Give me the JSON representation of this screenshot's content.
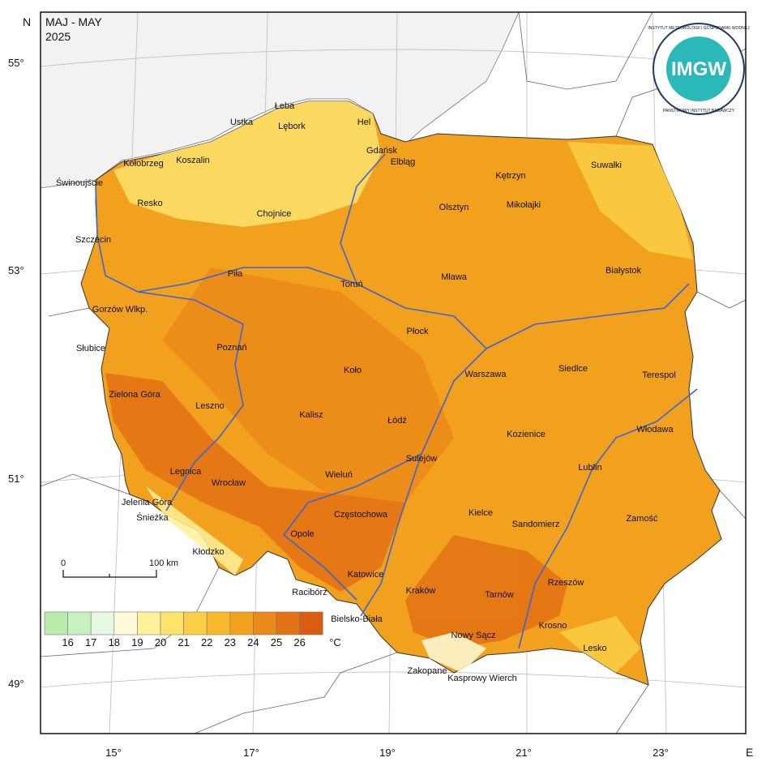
{
  "header": {
    "title": "MAJ - MAY",
    "year": "2025"
  },
  "north": "N",
  "east": "E",
  "logo": {
    "short": "IMGW",
    "ring_top": "INSTYTUT METEOROLOGII I GOSPODARKI WODNEJ",
    "ring_bottom": "PAŃSTWOWY INSTYTUT BADAWCZY"
  },
  "latitudes": [
    "55°",
    "53°",
    "51°",
    "49°"
  ],
  "longitudes": [
    "15°",
    "17°",
    "19°",
    "21°",
    "23°"
  ],
  "scale": {
    "start": "0",
    "end": "100 km"
  },
  "legend": {
    "labels": [
      "16",
      "17",
      "18",
      "19",
      "20",
      "21",
      "22",
      "23",
      "24",
      "25",
      "26"
    ],
    "unit": "°C",
    "colors": [
      "#b9ecaa",
      "#c9f0c0",
      "#e6f7e2",
      "#fffbd8",
      "#fff29a",
      "#fde36c",
      "#fbcf45",
      "#f8b82c",
      "#f2a11f",
      "#eb8a18",
      "#e37214",
      "#d95c10"
    ]
  },
  "cities": [
    "Łeba",
    "Hel",
    "Ustka",
    "Lębork",
    "Gdańsk",
    "Kołobrzeg",
    "Koszalin",
    "Elbląg",
    "Kętrzyn",
    "Suwałki",
    "Świnoujście",
    "Resko",
    "Chojnice",
    "Olsztyn",
    "Mikołajki",
    "Szczecin",
    "Piła",
    "Toruń",
    "Mława",
    "Białystok",
    "Gorzów Wlkp.",
    "Płock",
    "Słubice",
    "Poznań",
    "Siedlce",
    "Terespol",
    "Koło",
    "Warszawa",
    "Zielona Góra",
    "Leszno",
    "Kalisz",
    "Łódź",
    "Włodawa",
    "Kozienice",
    "Sulejów",
    "Lublin",
    "Legnica",
    "Wieluń",
    "Wrocław",
    "Jelenia Góra",
    "Śnieżka",
    "Częstochowa",
    "Kielce",
    "Zamość",
    "Sandomierz",
    "Opole",
    "Kłodzko",
    "Katowice",
    "Racibórz",
    "Kraków",
    "Rzeszów",
    "Tarnów",
    "Bielsko-Biała",
    "Krosno",
    "Nowy Sącz",
    "Lesko",
    "Zakopane",
    "Kasprowy Wierch"
  ]
}
